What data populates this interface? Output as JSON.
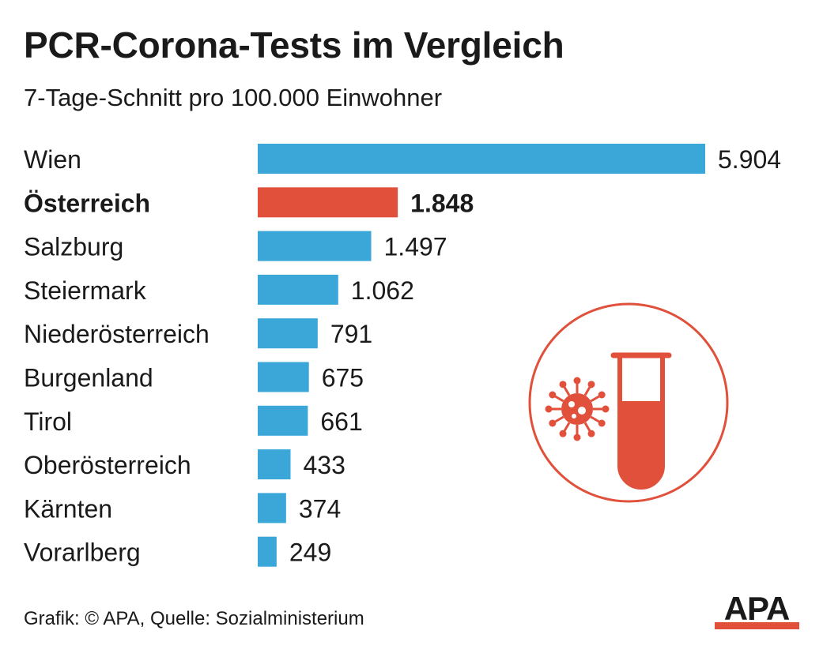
{
  "header": {
    "title": "PCR-Corona-Tests im Vergleich",
    "subtitle": "7-Tage-Schnitt pro 100.000 Einwohner"
  },
  "chart_data": {
    "type": "bar",
    "orientation": "horizontal",
    "title": "PCR-Corona-Tests im Vergleich",
    "subtitle": "7-Tage-Schnitt pro 100.000 Einwohner",
    "categories": [
      "Wien",
      "Österreich",
      "Salzburg",
      "Steiermark",
      "Niederösterreich",
      "Burgenland",
      "Tirol",
      "Oberösterreich",
      "Kärnten",
      "Vorarlberg"
    ],
    "values": [
      5904,
      1848,
      1497,
      1062,
      791,
      675,
      661,
      433,
      374,
      249
    ],
    "value_labels": [
      "5.904",
      "1.848",
      "1.497",
      "1.062",
      "791",
      "675",
      "661",
      "433",
      "374",
      "249"
    ],
    "highlight": "Österreich",
    "xlim": [
      0,
      5904
    ],
    "grid": false,
    "legend": "none",
    "colors": {
      "default": "#3ba7d8",
      "highlight": "#e0503a"
    }
  },
  "icon": {
    "name": "virus-test-tube-icon",
    "color": "#e0503a"
  },
  "footer": {
    "source": "Grafik: © APA, Quelle: Sozialministerium",
    "logo_text": "APA"
  }
}
